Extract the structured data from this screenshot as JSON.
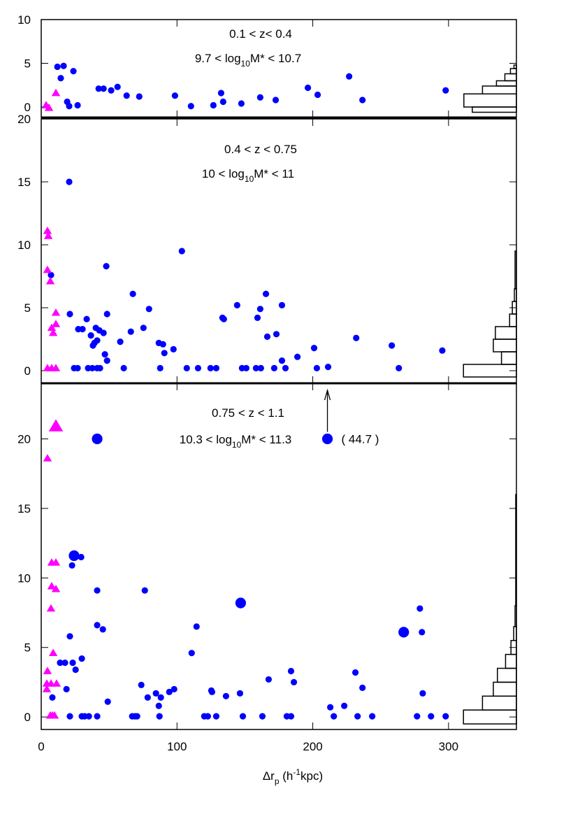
{
  "chart_data": [
    {
      "type": "scatter",
      "title": "0.1 < z< 0.4",
      "subtitle": [
        {
          "text": "9.7 < log"
        },
        {
          "text": "10",
          "shift": "sub"
        },
        {
          "text": "M* < 10.7"
        }
      ],
      "xlim": [
        0,
        350
      ],
      "ylim": [
        -1.2,
        10
      ],
      "yticks": [
        0,
        5,
        10
      ],
      "series": [
        {
          "color": "#0000ff",
          "marker": "circle",
          "size": "small",
          "x": [
            11.9,
            16.5,
            14.4,
            23.7,
            19.1,
            20.6,
            26.8,
            42.3,
            45.9,
            51.5,
            56.2,
            62.9,
            72.2,
            98.5,
            110.3,
            126.8,
            132.5,
            134,
            147.4,
            161.3,
            172.7,
            196.4,
            203.6,
            226.8,
            236.6,
            297.9
          ],
          "values": [
            4.6,
            4.7,
            3.3,
            4.1,
            0.6,
            0.1,
            0.2,
            2.1,
            2.1,
            1.9,
            2.3,
            1.3,
            1.2,
            1.3,
            0.1,
            0.2,
            1.6,
            0.6,
            0.4,
            1.1,
            0.8,
            2.2,
            1.4,
            3.5,
            0.8,
            1.9
          ]
        },
        {
          "color": "#ff00ff",
          "marker": "triangle",
          "size": "small",
          "x": [
            10.8,
            3.6,
            5.7
          ],
          "values": [
            1.6,
            0.2,
            -0.1
          ]
        }
      ],
      "histogram": {
        "bins": [
          -0.6,
          0,
          1.5,
          2.4,
          3.0,
          3.8,
          4.4,
          4.8
        ],
        "values": [
          32.5,
          38.7,
          25,
          14.7,
          8.5,
          4.4,
          1.8
        ]
      }
    },
    {
      "type": "scatter",
      "title": "0.4 < z < 0.75",
      "subtitle": [
        {
          "text": "10 < log"
        },
        {
          "text": "10",
          "shift": "sub"
        },
        {
          "text": "M* < 11"
        }
      ],
      "xlim": [
        0,
        350
      ],
      "ylim": [
        -1,
        20
      ],
      "yticks": [
        0,
        5,
        10,
        15,
        20
      ],
      "series": [
        {
          "color": "#0000ff",
          "marker": "circle",
          "size": "small",
          "x": [
            20.6,
            103.6,
            47.9,
            7.2,
            67.5,
            165.5,
            144.3,
            79.4,
            21.1,
            48.5,
            161.3,
            177.3,
            133.5,
            134.5,
            159.3,
            27.3,
            30.4,
            33.5,
            40.2,
            42.8,
            45.9,
            66,
            75.3,
            58.2,
            86.6,
            89.7,
            39.2,
            38.1,
            41.2,
            36.6,
            97.4,
            46.9,
            90.7,
            48.5,
            177.3,
            166.5,
            173.2,
            188.7,
            201,
            232,
            258.2,
            295.4,
            24.2,
            26.8,
            34.5,
            37.6,
            41.2,
            43.3,
            60.8,
            87.6,
            107.2,
            115.5,
            124.7,
            128.9,
            147.9,
            151,
            158.2,
            161.8,
            171.6,
            179.9,
            203,
            211.3,
            263.4
          ],
          "values": [
            15.0,
            9.5,
            8.3,
            7.6,
            6.1,
            6.1,
            5.2,
            4.9,
            4.5,
            4.5,
            4.9,
            5.2,
            4.2,
            4.1,
            4.2,
            3.3,
            3.3,
            4.1,
            3.4,
            3.2,
            3.0,
            3.1,
            3.4,
            2.3,
            2.2,
            2.1,
            2.2,
            2.0,
            2.4,
            2.8,
            1.7,
            1.3,
            1.4,
            0.8,
            0.8,
            2.7,
            2.9,
            1.1,
            1.8,
            2.6,
            2.0,
            1.6,
            0.2,
            0.2,
            0.2,
            0.2,
            0.2,
            0.2,
            0.2,
            0.2,
            0.2,
            0.2,
            0.2,
            0.2,
            0.2,
            0.2,
            0.2,
            0.2,
            0.2,
            0.2,
            0.2,
            0.3,
            0.2
          ]
        },
        {
          "color": "#ff00ff",
          "marker": "triangle",
          "size": "small",
          "x": [
            4.6,
            5.2,
            4.6,
            6.7,
            10.8,
            10.8,
            7.7,
            8.8,
            4.6,
            7.7,
            10.8
          ],
          "values": [
            11.1,
            10.7,
            8.0,
            7.1,
            4.6,
            3.7,
            3.4,
            3.0,
            0.2,
            0.2,
            0.2
          ]
        }
      ],
      "histogram": {
        "bins": [
          -0.5,
          0.5,
          1.5,
          2.5,
          3.5,
          4.5,
          5.5,
          6.5,
          9.5
        ],
        "values": [
          39,
          11,
          17,
          15.5,
          5,
          3,
          1.5,
          1
        ]
      }
    },
    {
      "type": "scatter",
      "title": "0.75 < z < 1.1",
      "subtitle": [
        {
          "text": "10.3 < log"
        },
        {
          "text": "10",
          "shift": "sub"
        },
        {
          "text": "M* < 11.3"
        }
      ],
      "xlim": [
        0,
        350
      ],
      "ylim": [
        -0.9,
        24
      ],
      "yticks": [
        0,
        5,
        10,
        15,
        20
      ],
      "xticks": [
        0,
        100,
        200,
        300
      ],
      "xlabel": [
        {
          "text": "Δr"
        },
        {
          "text": "p",
          "shift": "sub"
        },
        {
          "text": " (h"
        },
        {
          "text": "-1",
          "shift": "sup"
        },
        {
          "text": "kpc)"
        }
      ],
      "series": [
        {
          "color": "#0000ff",
          "marker": "circle",
          "size": "small",
          "x": [
            29.4,
            22.7,
            41.2,
            76.3,
            41.2,
            45.4,
            114.4,
            21.1,
            110.8,
            278.9,
            280.4,
            13.9,
            17.5,
            23.2,
            29.9,
            25.3,
            18.6,
            8.2,
            73.7,
            78.4,
            84.5,
            86.6,
            88.1,
            94.3,
            97.9,
            49,
            125.3,
            125.8,
            136.1,
            146.4,
            167.5,
            184,
            186.1,
            231.4,
            236.6,
            212.9,
            223.2,
            281,
            21.1,
            29.9,
            32,
            35.1,
            41.2,
            67,
            69.1,
            70.6,
            87.1,
            120.1,
            122.7,
            128.9,
            148.5,
            162.9,
            180.9,
            184,
            215.5,
            233,
            243.8,
            276.8,
            287.1,
            297.9
          ],
          "values": [
            11.5,
            10.9,
            9.1,
            9.1,
            6.6,
            6.3,
            6.5,
            5.8,
            4.6,
            7.8,
            6.1,
            3.9,
            3.9,
            3.9,
            4.2,
            3.4,
            2.0,
            1.4,
            2.3,
            1.4,
            1.7,
            0.8,
            1.4,
            1.8,
            2.0,
            1.1,
            1.9,
            1.8,
            1.5,
            1.7,
            2.7,
            3.3,
            2.5,
            3.2,
            2.1,
            0.7,
            0.8,
            1.7,
            0.05,
            0.05,
            0.05,
            0.05,
            0.05,
            0.05,
            0.05,
            0.05,
            0.05,
            0.05,
            0.05,
            0.05,
            0.05,
            0.05,
            0.05,
            0.05,
            0.05,
            0.05,
            0.05,
            0.05,
            0.05,
            0.05
          ]
        },
        {
          "color": "#0000ff",
          "marker": "circle",
          "size": "large",
          "x": [
            41.2,
            24.2,
            146.9,
            267
          ],
          "values": [
            20.0,
            11.6,
            8.2,
            6.1
          ]
        },
        {
          "color": "#ff00ff",
          "marker": "triangle",
          "size": "small",
          "x": [
            4.6,
            7.7,
            10.8,
            7.7,
            10.8,
            7.2,
            8.8,
            4.6,
            4.1,
            4.1,
            7.2,
            11.3,
            8.2,
            6.7,
            9.8
          ],
          "values": [
            18.6,
            11.1,
            11.1,
            9.4,
            9.2,
            7.8,
            4.6,
            3.3,
            2.4,
            2.0,
            2.4,
            2.4,
            0.1,
            0.1,
            0.1
          ]
        },
        {
          "color": "#ff00ff",
          "marker": "triangle",
          "size": "large",
          "x": [
            10.8
          ],
          "values": [
            20.9
          ]
        }
      ],
      "annotation": {
        "x": 210.8,
        "y": 20,
        "text": "( 44.7 )"
      },
      "histogram": {
        "bins": [
          -0.5,
          0.5,
          1.5,
          2.5,
          3.5,
          4.5,
          5.5,
          6.5,
          8,
          16
        ],
        "values": [
          39,
          25,
          17,
          14,
          8,
          4,
          2,
          1,
          0.5
        ]
      }
    }
  ]
}
